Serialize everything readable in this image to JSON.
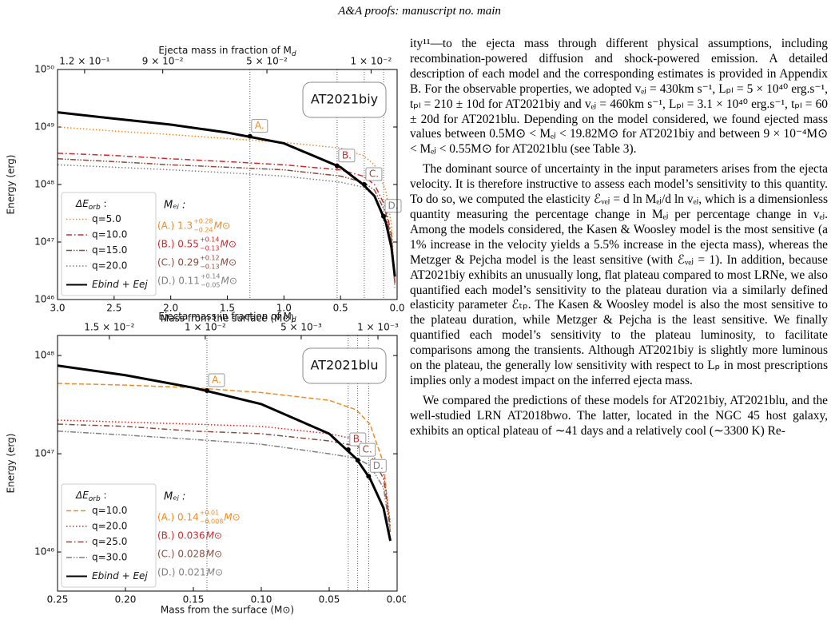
{
  "header": {
    "title": "A&A proofs: manuscript no. main"
  },
  "chart_data": [
    {
      "type": "line",
      "log_y": true,
      "box_label": "AT2021biy",
      "xlabel": "Mass from the surface (M⊙)",
      "ylabel": "Energy (erg)",
      "x2label": {
        "text": "Ejecta mass in fraction of M",
        "sub": "d"
      },
      "xlim": [
        3.0,
        0
      ],
      "ylim": [
        1e+46,
        1e+50
      ],
      "x2lim": [
        0.1304,
        0
      ],
      "xticks": [
        {
          "value": 3,
          "label": "3.0"
        },
        2.5,
        {
          "value": 2,
          "label": "2.0"
        },
        1.5,
        {
          "value": 1,
          "label": "1.0"
        },
        0.5,
        {
          "value": 0,
          "label": "0.0"
        }
      ],
      "yticks": [
        {
          "value": 1e+46,
          "label": "10⁴⁶"
        },
        {
          "value": 1e+47,
          "label": "10⁴⁷"
        },
        {
          "value": 1e+48,
          "label": "10⁴⁸"
        },
        {
          "value": 1e+49,
          "label": "10⁴⁹"
        },
        {
          "value": 1e+50,
          "label": "10⁵⁰"
        }
      ],
      "x2ticks": [
        {
          "value": 0.12,
          "label": "1.2 × 10⁻¹"
        },
        {
          "value": 0.09,
          "label": "9 × 10⁻²"
        },
        {
          "value": 0.05,
          "label": "5 × 10⁻²"
        },
        {
          "value": 0.01,
          "label": "1 × 10⁻²"
        }
      ],
      "legend": "lower left",
      "legend_title": {
        "text": "ΔE",
        "sub": "orb",
        "tail": " :"
      },
      "x": [
        3.0,
        2.5,
        2.0,
        1.5,
        1.0,
        0.5,
        0.3,
        0.2,
        0.1,
        0.05,
        0.02
      ],
      "series": [
        {
          "name": "q=5.0",
          "color": "#f08a24",
          "dash": "dotted",
          "values": [
            1e+49,
            8.5e+48,
            7.4e+48,
            6.3e+48,
            5.4e+48,
            4.3e+48,
            3.2e+48,
            2.2e+48,
            7.9e+47,
            2e+47,
            2e+46
          ]
        },
        {
          "name": "q=10.0",
          "color": "#d62728",
          "dash": "dashdot",
          "values": [
            3.5e+48,
            3.2e+48,
            2.8e+48,
            2.5e+48,
            2.2e+48,
            1.8e+48,
            1.4e+48,
            1e+48,
            4e+47,
            1.3e+47,
            2e+46
          ]
        },
        {
          "name": "q=15.0",
          "color": "#8c4a3c",
          "dash": "dashdotdot",
          "values": [
            2.8e+48,
            2.5e+48,
            2.2e+48,
            2e+48,
            1.8e+48,
            1.4e+48,
            1.1e+48,
            8e+47,
            3.2e+47,
            1.1e+47,
            1.8e+46
          ]
        },
        {
          "name": "q=20.0",
          "color": "#7f7f7f",
          "dash": "dotted",
          "values": [
            2.2e+48,
            2e+48,
            1.8e+48,
            1.6e+48,
            1.4e+48,
            1.1e+48,
            9e+47,
            6.3e+47,
            2.5e+47,
            1e+47,
            1.6e+46
          ]
        },
        {
          "name": "Ebind + Eej",
          "color": "#000000",
          "dash": "solid",
          "values": [
            1.8e+49,
            1.4e+49,
            1.1e+49,
            8e+48,
            5.2e+48,
            2e+48,
            1e+48,
            6.3e+47,
            2.2e+47,
            8e+46,
            2.5e+46
          ]
        }
      ],
      "markers": [
        {
          "label": "A.",
          "x": 1.3,
          "y": 6.9e+48,
          "color": "#f08a24"
        },
        {
          "label": "B.",
          "x": 0.53,
          "y": 2.1e+48,
          "color": "#d62728"
        },
        {
          "label": "C.",
          "x": 0.29,
          "y": 1e+48,
          "color": "#8c4a3c"
        },
        {
          "label": "D.",
          "x": 0.12,
          "y": 2.8e+47,
          "color": "#7f7f7f"
        }
      ],
      "mej": {
        "title": "Mₑⱼ :",
        "items": [
          {
            "text": "(A.) 1.3",
            "sup": "+0.28",
            "sub": "−0.24",
            "unit": "M⊙",
            "color": "#f08a24"
          },
          {
            "text": "(B.) 0.55",
            "sup": "+0.14",
            "sub": "−0.13",
            "unit": "M⊙",
            "color": "#d62728"
          },
          {
            "text": "(C.) 0.29",
            "sup": "+0.12",
            "sub": "−0.13",
            "unit": "M⊙",
            "color": "#8c4a3c"
          },
          {
            "text": "(D.) 0.11",
            "sup": "+0.14",
            "sub": "−0.05",
            "unit": "M⊙",
            "color": "#7f7f7f"
          }
        ]
      }
    },
    {
      "type": "line",
      "log_y": true,
      "box_label": "AT2021blu",
      "xlabel": "Mass from the surface (M⊙)",
      "ylabel": "Energy (erg)",
      "x2label": {
        "text": "Ejecta mass in fraction of M",
        "sub": "d"
      },
      "xlim": [
        0.25,
        0
      ],
      "ylim": [
        4e+45,
        1.6e+48
      ],
      "x2lim": [
        0.0177,
        0
      ],
      "xticks": [
        0.25,
        {
          "value": 0.2,
          "label": "0.20"
        },
        0.15,
        {
          "value": 0.1,
          "label": "0.10"
        },
        0.05,
        {
          "value": 0,
          "label": "0.00"
        }
      ],
      "yticks": [
        {
          "value": 1e+46,
          "label": "10⁴⁶"
        },
        {
          "value": 1e+47,
          "label": "10⁴⁷"
        },
        {
          "value": 1e+48,
          "label": "10⁴⁸"
        }
      ],
      "x2ticks": [
        {
          "value": 0.015,
          "label": "1.5 × 10⁻²"
        },
        {
          "value": 0.01,
          "label": "1 × 10⁻²"
        },
        {
          "value": 0.005,
          "label": "5 × 10⁻³"
        },
        {
          "value": 0.001,
          "label": "1 × 10⁻³"
        }
      ],
      "legend": "lower left",
      "legend_title": {
        "text": "ΔE",
        "sub": "orb",
        "tail": " :"
      },
      "x": [
        0.25,
        0.2,
        0.15,
        0.1,
        0.05,
        0.03,
        0.02,
        0.01,
        0.005
      ],
      "series": [
        {
          "name": "q=10.0",
          "color": "#f08a24",
          "dash": "dashed",
          "values": [
            5.2e+47,
            5e+47,
            4.7e+47,
            4.2e+47,
            3.5e+47,
            2.8e+47,
            2e+47,
            8e+46,
            1.6e+46
          ]
        },
        {
          "name": "q=20.0",
          "color": "#d62728",
          "dash": "dotted",
          "values": [
            2.2e+47,
            2.1e+47,
            2e+47,
            1.9e+47,
            1.6e+47,
            1.4e+47,
            1.1e+47,
            6.3e+46,
            2e+46
          ]
        },
        {
          "name": "q=25.0",
          "color": "#8c4a3c",
          "dash": "dashdot",
          "values": [
            2e+47,
            1.9e+47,
            1.7e+47,
            1.6e+47,
            1.35e+47,
            1.2e+47,
            1e+47,
            5.6e+46,
            1.8e+46
          ]
        },
        {
          "name": "q=30.0",
          "color": "#7f7f7f",
          "dash": "dashdotdot",
          "values": [
            1.7e+47,
            1.55e+47,
            1.4e+47,
            1.25e+47,
            1e+47,
            9e+46,
            7.6e+46,
            4.5e+46,
            1.6e+46
          ]
        },
        {
          "name": "Ebind + Eej",
          "color": "#000000",
          "dash": "solid",
          "values": [
            7.9e+47,
            6.3e+47,
            4.7e+47,
            3.2e+47,
            1.6e+47,
            8.9e+46,
            5.6e+46,
            2.8e+46,
            1.3e+46
          ]
        }
      ],
      "markers": [
        {
          "label": "A.",
          "x": 0.14,
          "y": 4.4e+47,
          "color": "#f08a24"
        },
        {
          "label": "B.",
          "x": 0.036,
          "y": 1.1e+47,
          "color": "#d62728"
        },
        {
          "label": "C.",
          "x": 0.029,
          "y": 8.6e+46,
          "color": "#8c4a3c"
        },
        {
          "label": "D.",
          "x": 0.021,
          "y": 5.9e+46,
          "color": "#7f7f7f"
        }
      ],
      "mej": {
        "title": "Mₑⱼ :",
        "items": [
          {
            "text": "(A.) 0.14",
            "sup": "+0.01",
            "sub": "−0.008",
            "unit": "M⊙",
            "color": "#f08a24"
          },
          {
            "text": "(B.) 0.036",
            "unit": "M⊙",
            "color": "#d62728"
          },
          {
            "text": "(C.) 0.028",
            "unit": "M⊙",
            "color": "#8c4a3c"
          },
          {
            "text": "(D.) 0.021",
            "unit": "M⊙",
            "color": "#7f7f7f"
          }
        ]
      }
    }
  ],
  "body": {
    "paragraphs": [
      "ity¹¹—to the ejecta mass through different physical assumptions, including recombination-powered diffusion and shock-powered emission. A detailed description of each model and the corresponding estimates is provided in Appendix B. For the observable properties, we adopted vₑⱼ = 430km s⁻¹, Lₚₗ = 5 × 10⁴⁰ erg.s⁻¹, tₚₗ = 210 ± 10d for AT2021biy and vₑⱼ = 460km s⁻¹, Lₚₗ = 3.1 × 10⁴⁰ erg.s⁻¹, tₚₗ = 60 ± 20d for AT2021blu. Depending on the model considered, we found ejected mass values between 0.5M⊙ < Mₑⱼ < 19.82M⊙ for AT2021biy and between 9 × 10⁻⁴M⊙ < Mₑⱼ < 0.55M⊙ for AT2021blu (see Table 3).",
      "The dominant source of uncertainty in the input parameters arises from the ejecta velocity. It is therefore instructive to assess each model’s sensitivity to this quantity. To do so, we computed the elasticity ℰᵥₑⱼ = d ln Mₑⱼ/d ln vₑⱼ, which is a dimensionless quantity measuring the percentage change in Mₑⱼ per percentage change in vₑⱼ. Among the models considered, the Kasen & Woosley model is the most sensitive (a 1% increase in the velocity yields a 5.5% increase in the ejecta mass), whereas the Metzger & Pejcha model is the least sensitive (with ℰᵥₑⱼ = 1). In addition, because AT2021biy exhibits an unusually long, flat plateau compared to most LRNe, we also quantified each model’s sensitivity to the plateau duration via a similarly defined elasticity parameter ℰₜₚ. The Kasen & Woosley model is also the most sensitive to the plateau duration, while Metzger & Pejcha is the least sensitive. We finally quantified each model’s sensitivity to the plateau luminosity, to facilitate comparisons among the transients. Although AT2021biy is slightly more luminous on the plateau, the generally low sensitivity with respect to Lₚ in most prescriptions implies only a modest impact on the inferred ejecta mass.",
      "We compared the predictions of these models for AT2021biy, AT2021blu, and the well-studied LRN AT2018bwo. The latter, located in the NGC 45 host galaxy, exhibits an optical plateau of ∼41 days and a relatively cool (∼3300 K) Re-"
    ]
  }
}
